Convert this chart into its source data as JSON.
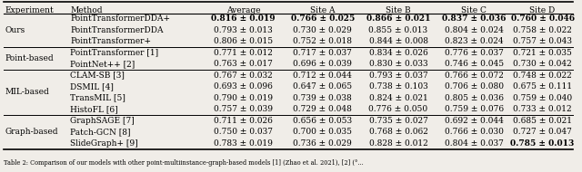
{
  "columns": [
    "Experiment",
    "Method",
    "Average",
    "Site A",
    "Site B",
    "Site C",
    "Site D"
  ],
  "rows": [
    [
      "Ours",
      "PointTransformerDDA+",
      "0.816",
      "0.019",
      "0.766",
      "0.025",
      "0.866",
      "0.021",
      "0.837",
      "0.036",
      "0.760",
      "0.046",
      true
    ],
    [
      "",
      "PointTransformerDDA",
      "0.793",
      "0.013",
      "0.730",
      "0.029",
      "0.855",
      "0.013",
      "0.804",
      "0.024",
      "0.758",
      "0.022",
      false
    ],
    [
      "",
      "PointTransformer+",
      "0.806",
      "0.015",
      "0.752",
      "0.018",
      "0.844",
      "0.008",
      "0.823",
      "0.024",
      "0.757",
      "0.043",
      false
    ],
    [
      "Point-based",
      "PointTransformer [1]",
      "0.771",
      "0.012",
      "0.717",
      "0.037",
      "0.834",
      "0.026",
      "0.776",
      "0.037",
      "0.721",
      "0.035",
      false
    ],
    [
      "",
      "PointNet++ [2]",
      "0.763",
      "0.017",
      "0.696",
      "0.039",
      "0.830",
      "0.033",
      "0.746",
      "0.045",
      "0.730",
      "0.042",
      false
    ],
    [
      "MIL-based",
      "CLAM-SB [3]",
      "0.767",
      "0.032",
      "0.712",
      "0.044",
      "0.793",
      "0.037",
      "0.766",
      "0.072",
      "0.748",
      "0.022",
      false
    ],
    [
      "",
      "DSMIL [4]",
      "0.693",
      "0.096",
      "0.647",
      "0.065",
      "0.738",
      "0.103",
      "0.706",
      "0.080",
      "0.675",
      "0.111",
      false
    ],
    [
      "",
      "TransMIL [5]",
      "0.790",
      "0.019",
      "0.739",
      "0.038",
      "0.824",
      "0.021",
      "0.805",
      "0.036",
      "0.759",
      "0.040",
      false
    ],
    [
      "",
      "HistoFL [6]",
      "0.757",
      "0.039",
      "0.729",
      "0.048",
      "0.776",
      "0.050",
      "0.759",
      "0.076",
      "0.733",
      "0.012",
      false
    ],
    [
      "Graph-based",
      "GraphSAGE [7]",
      "0.711",
      "0.026",
      "0.656",
      "0.053",
      "0.735",
      "0.027",
      "0.692",
      "0.044",
      "0.685",
      "0.021",
      false
    ],
    [
      "",
      "Patch-GCN [8]",
      "0.750",
      "0.037",
      "0.700",
      "0.035",
      "0.768",
      "0.062",
      "0.766",
      "0.030",
      "0.727",
      "0.047",
      false
    ],
    [
      "",
      "SlideGraph+ [9]",
      "0.783",
      "0.019",
      "0.736",
      "0.029",
      "0.828",
      "0.012",
      "0.804",
      "0.037",
      "0.785",
      "0.013",
      false
    ]
  ],
  "bold_row0_all": true,
  "bold_last_sitedval": true,
  "group_separators": [
    3,
    5,
    9
  ],
  "bg_color": "#f0ede8",
  "fontsize": 6.5,
  "note": "Table 2: Comparison of our models with other point-multiinstance-graph-based models [1] (Zhao et al. 2021), [2] (°..."
}
